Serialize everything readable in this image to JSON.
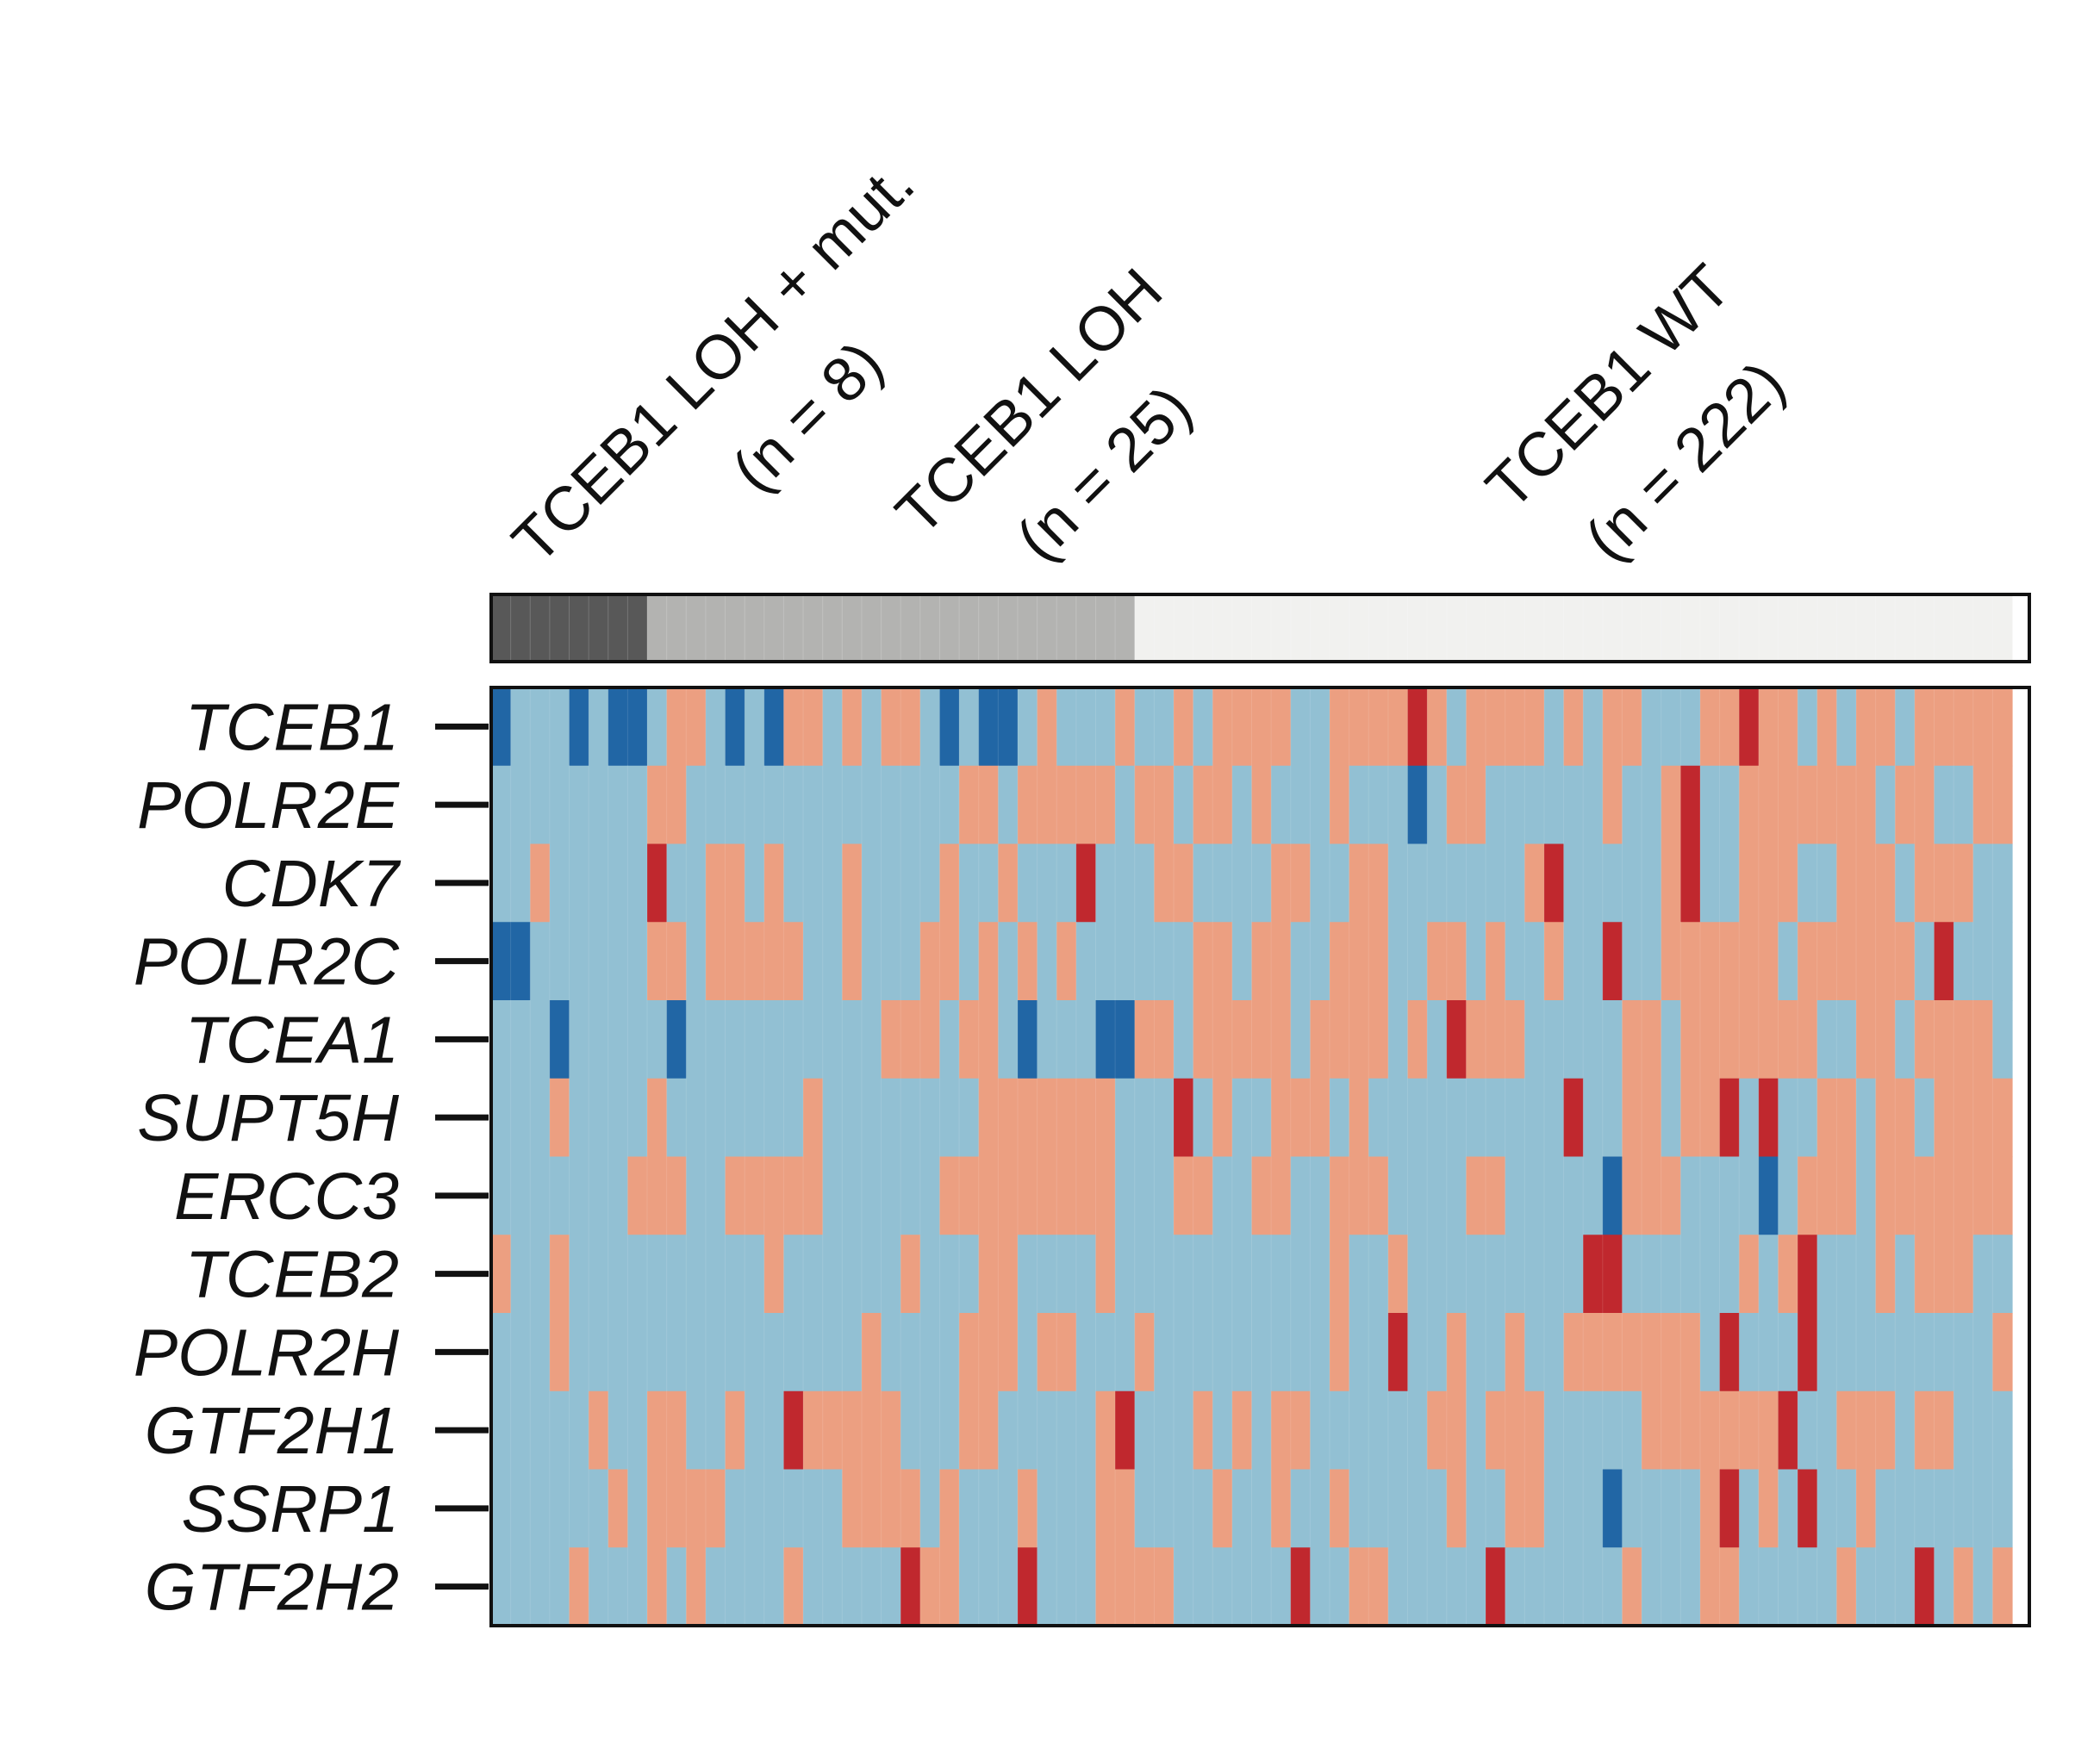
{
  "chart_data": {
    "type": "heatmap",
    "groups": [
      {
        "label": "TCEB1 LOH + mut.",
        "n_label": "(n = 8)",
        "n": 8,
        "color": "#585858"
      },
      {
        "label": "TCEB1 LOH",
        "n_label": "(n = 25)",
        "n": 25,
        "color": "#b3b3b1"
      },
      {
        "label": "TCEB1 WT",
        "n_label": "(n = 222)",
        "n": 222,
        "color": "#f1f1ef"
      }
    ],
    "rows": [
      "TCEB1",
      "POLR2E",
      "CDK7",
      "POLR2C",
      "TCEA1",
      "SUPT5H",
      "ERCC3",
      "TCEB2",
      "POLR2H",
      "GTF2H1",
      "SSRP1",
      "GTF2H2"
    ],
    "visible_columns": 78,
    "levels": [
      {
        "code": "B",
        "meaning": "strong low",
        "color": "#2166a5"
      },
      {
        "code": "b",
        "meaning": "low",
        "color": "#92c0d3"
      },
      {
        "code": "r",
        "meaning": "high",
        "color": "#ec9f81"
      },
      {
        "code": "R",
        "meaning": "strong high",
        "color": "#c0282e"
      }
    ],
    "matrix": [
      "BbbbBbBBbrrbBbBrrbrbrrbBbBBbrbbbrbbrbrrrrbbrrrrRrbrrrrbrbrrbbbrrRrrbrbrrbrrrrr",
      "bbbbbbbbrrbbbbbbbbbbbbbbrrbrrrrrbrrbrrbrbbbrbbbBbrrbbbbbbrbbrRbbrrrrrrrbrrbbrr",
      "bbrbbbbbRbbrrbrbbbrbbbbrbbrbbbRbbbrrbbbbrrbbrrbbbbbbbrRbbbbbrRbbrrrbbrrrbrrrbb",
      "BBbbbbbbrrbrrrrrbbrbbbrrbrbrbrbbbbbbrrbrrbbrrrbbrrbrbbrbbRbbrrrrrrbrrrrrrbRbbb",
      "bbbBbbbbbBbbbbbbbbbbrrrbrrbBbbbBBrrbrrrrrbrrrrbrbRrrrbbbbbrrbrrrrrrrbbrrbrrrrb",
      "bbbrbbbbrbbbbbbbrbbbbbbbbrrrrrrrbbbRbrbbrrrbrbbbbbbbbbbRbbrrbrrRbRbbrrbrrbrrrr",
      "bbbbbbbrrrbbrrrrrbbbbbbrrrrrrrrrbbbrrbbrrbbrrrbbbbrrbbbbbBrrrbbbbBbrrrbrrrrrrr",
      "rbbrbbbbbbbbbbrbbbbbbrbbbrrbbbbrbbbbbbbbbbbrbbrbbbbbbbbbRRbbbbbbrbrRbbbrbrrrbb",
      "bbbrbbbbbbbbbbbbbbbrbbbbrrrbrrbbbrbbbbbbbbbrbbRbbrbbrbbrrrrrrrbRbbbRbbbbbbbbbr",
      "bbbbbrbbrrbbrbbRrrrrrbbbrrbbbbbrRbbbrbrbrrbbbbbbrrbrrrbbbbbrrrrrrrRbbrrrbrrbbb",
      "bbbbbbrbrrrrbbbbbbrrrrbrbbbrbbbrrbbbbrbbrbbrbbbbbrbbrrbbbBbbbbrRbrbRbbrbbbbbbb",
      "bbbbrbbbrbrbbbbrbbbbbRrrbbbRbbbrrrrbbbbbbRbbrrbbbbbRbbbbbbrbbbrrbbbbbrbbbRbrbr"
    ]
  }
}
